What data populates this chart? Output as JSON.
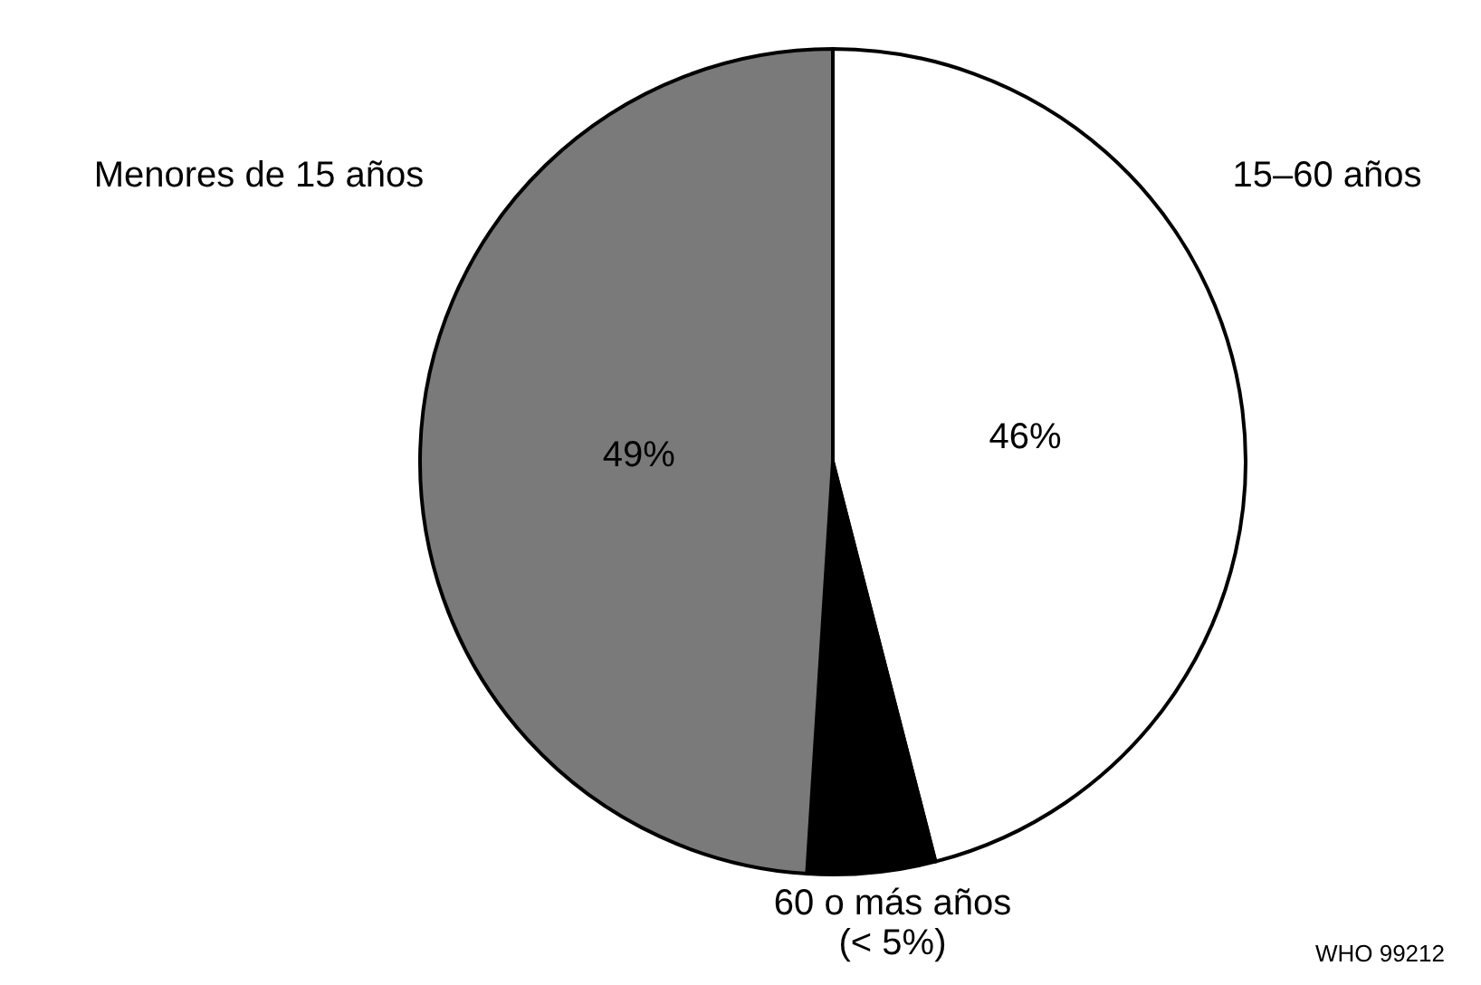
{
  "chart_data": {
    "type": "pie",
    "categories": [
      "15–60 años",
      "60 o más años",
      "Menores de 15 años"
    ],
    "values": [
      46,
      5,
      49
    ],
    "value_labels": [
      "46%",
      "(< 5%)",
      "49%"
    ],
    "colors": [
      "#ffffff",
      "#000000",
      "#7a7a7a"
    ],
    "annotations": [
      "WHO 99212"
    ]
  }
}
